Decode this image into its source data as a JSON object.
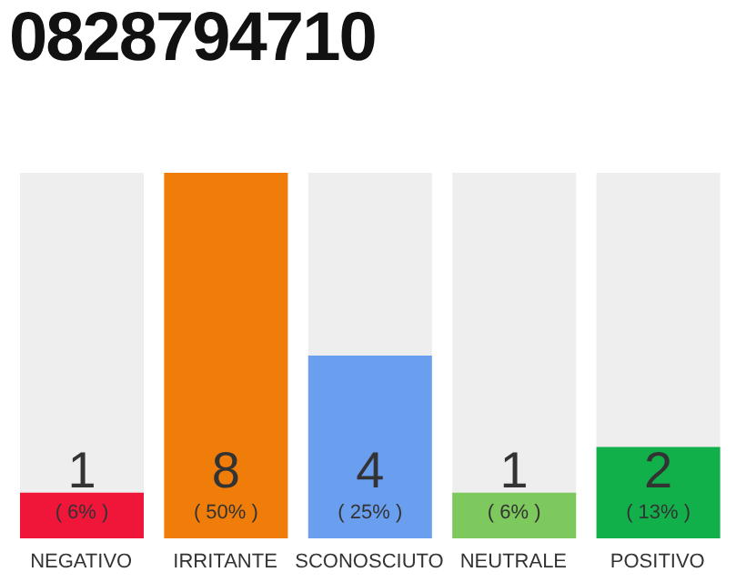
{
  "chart_data": {
    "type": "bar",
    "title": "0828794710",
    "categories": [
      "NEGATIVO",
      "IRRITANTE",
      "SCONOSCIUTO",
      "NEUTRALE",
      "POSITIVO"
    ],
    "values": [
      1,
      8,
      4,
      1,
      2
    ],
    "colors": [
      "#f0163a",
      "#f07d0a",
      "#6a9ff0",
      "#7dc95e",
      "#12b04a"
    ],
    "data_labels": true,
    "annotations": [
      "( 6% )",
      "( 50% )",
      "( 25% )",
      "( 6% )",
      "( 13% )"
    ],
    "grid": false,
    "legend": false
  }
}
